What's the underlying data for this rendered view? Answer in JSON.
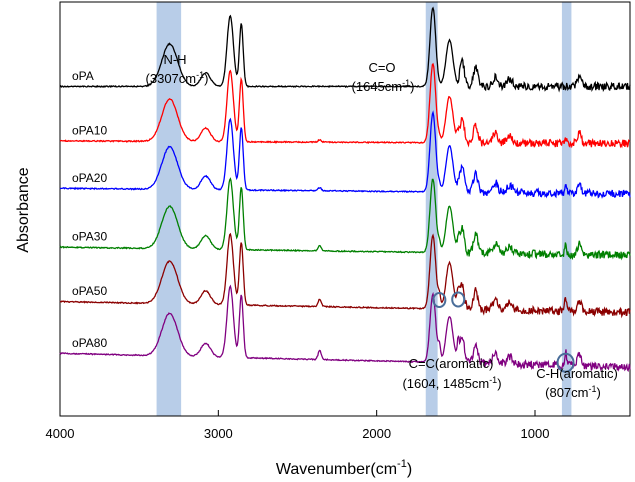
{
  "chart_data": {
    "type": "line",
    "xlabel": "Wavenumber(cm",
    "xlabel_sup": "-1",
    "xlabel_close": ")",
    "ylabel": "Absorbance",
    "xlim": [
      4000,
      400
    ],
    "x_reversed": true,
    "x_ticks": [
      4000,
      3000,
      2000,
      1000
    ],
    "x_tick_labels": [
      "4000",
      "3000",
      "2000",
      "1000"
    ],
    "ylim": [
      0,
      7.6
    ],
    "y_ticks_shown": false,
    "grid": false,
    "highlight_bands": [
      {
        "from": 3390,
        "to": 3235
      },
      {
        "from": 1690,
        "to": 1615
      },
      {
        "from": 830,
        "to": 770
      }
    ],
    "annotations": [
      {
        "name": "nh",
        "line1": "N-H",
        "line2": "(3307cm",
        "line2_sup": "-1",
        "line2_close": ")"
      },
      {
        "name": "co",
        "line1": "C=O",
        "line2": "(1645cm",
        "line2_sup": "-1",
        "line2_close": ")"
      },
      {
        "name": "cc",
        "line1": "C=C(aromatic)",
        "line2": "(1604, 1485cm",
        "line2_sup": "-1",
        "line2_close": ")"
      },
      {
        "name": "ch",
        "line1": "C-H(aromatic)",
        "line2": "(807cm",
        "line2_sup": "-1",
        "line2_close": ")"
      }
    ],
    "marker_circles": [
      {
        "x": 1604,
        "series": "oPA50"
      },
      {
        "x": 1485,
        "series": "oPA50"
      },
      {
        "x": 807,
        "series": "oPA80"
      }
    ],
    "peaks": [
      {
        "center": 3307,
        "width": 50,
        "height": 0.78
      },
      {
        "center": 3080,
        "width": 30,
        "height": 0.25
      },
      {
        "center": 2925,
        "width": 20,
        "height": 1.3
      },
      {
        "center": 2855,
        "width": 12,
        "height": 1.15
      },
      {
        "center": 1645,
        "width": 18,
        "height": 1.45
      },
      {
        "center": 1540,
        "width": 22,
        "height": 0.85
      },
      {
        "center": 1460,
        "width": 14,
        "height": 0.45
      },
      {
        "center": 1375,
        "width": 14,
        "height": 0.35
      },
      {
        "center": 1250,
        "width": 16,
        "height": 0.18
      },
      {
        "center": 1160,
        "width": 18,
        "height": 0.14
      },
      {
        "center": 720,
        "width": 12,
        "height": 0.2
      }
    ],
    "series": [
      {
        "name": "oPA",
        "color": "#000000",
        "baseline": 6.05,
        "aromatic": 0.0,
        "co_height": 1.45
      },
      {
        "name": "oPA10",
        "color": "#ff0000",
        "baseline": 5.05,
        "aromatic": 0.15,
        "co_height": 1.45
      },
      {
        "name": "oPA20",
        "color": "#0000ff",
        "baseline": 4.18,
        "aromatic": 0.2,
        "co_height": 1.45
      },
      {
        "name": "oPA30",
        "color": "#008000",
        "baseline": 3.1,
        "aromatic": 0.3,
        "co_height": 1.35
      },
      {
        "name": "oPA50",
        "color": "#8b0000",
        "baseline": 2.1,
        "aromatic": 0.45,
        "co_height": 1.35
      },
      {
        "name": "oPA80",
        "color": "#800080",
        "baseline": 1.15,
        "aromatic": 0.55,
        "co_height": 1.25
      }
    ]
  },
  "colors": {
    "band": "#b8cde8",
    "circle": "#4a6e9a",
    "axis": "#000000"
  }
}
